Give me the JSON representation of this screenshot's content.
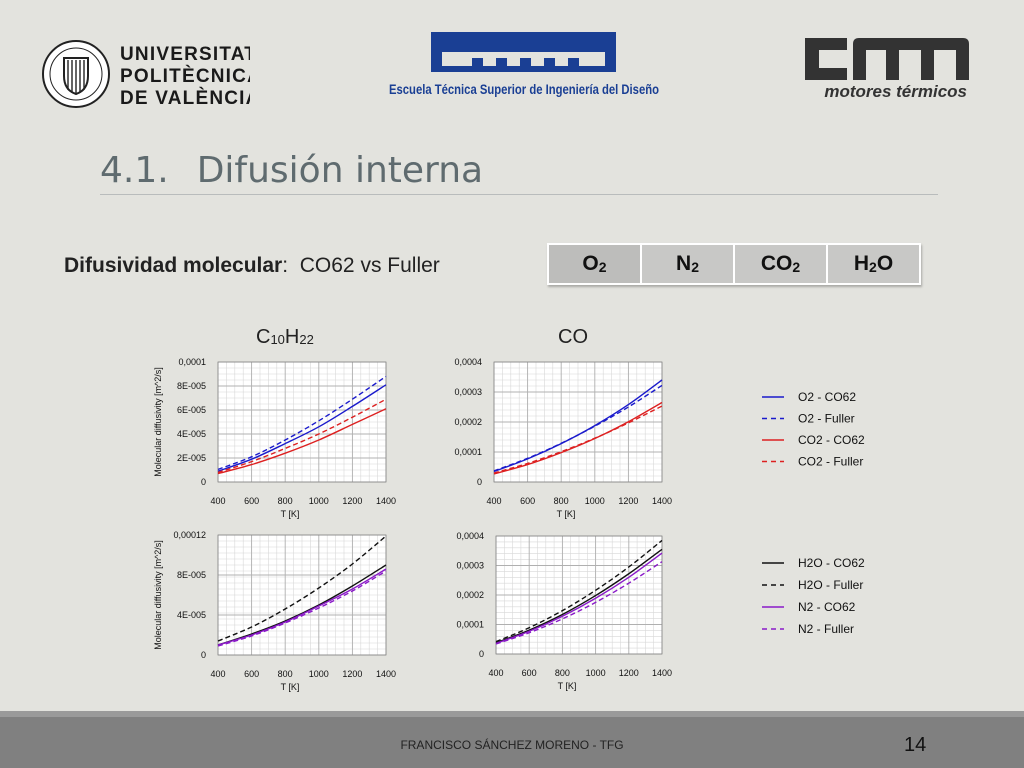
{
  "header": {
    "upv_logo_text": [
      "UNIVERSITAT",
      "POLITÈCNICA",
      "DE VALÈNCIA"
    ],
    "etsid_text": "Escuela Técnica Superior de Ingeniería del Diseño",
    "cmt_text": "motores térmicos"
  },
  "title": {
    "number": "4.1.",
    "text": "Difusión interna"
  },
  "subtitle": {
    "bold": "Difusividad molecular",
    "rest": "CO62 vs Fuller"
  },
  "species_table": [
    {
      "base": "O",
      "sub": "2"
    },
    {
      "base": "N",
      "sub": "2"
    },
    {
      "base": "CO",
      "sub": "2"
    },
    {
      "base": "H",
      "sub": "2",
      "tail": "O"
    }
  ],
  "column_heads": {
    "left": {
      "a": "C",
      "a_sub": "10",
      "b": "H",
      "b_sub": "22"
    },
    "right": "CO"
  },
  "legends": {
    "top": [
      {
        "label": "O2 - CO62",
        "color": "#1a1acc",
        "dash": false
      },
      {
        "label": "O2 - Fuller",
        "color": "#1a1acc",
        "dash": true
      },
      {
        "label": "CO2 - CO62",
        "color": "#dd2020",
        "dash": false
      },
      {
        "label": "CO2 - Fuller",
        "color": "#dd2020",
        "dash": true
      }
    ],
    "bottom": [
      {
        "label": "H2O - CO62",
        "color": "#111111",
        "dash": false
      },
      {
        "label": "H2O - Fuller",
        "color": "#111111",
        "dash": true
      },
      {
        "label": "N2 - CO62",
        "color": "#8a1ac8",
        "dash": false
      },
      {
        "label": "N2 - Fuller",
        "color": "#8a1ac8",
        "dash": true
      }
    ]
  },
  "chart_data": [
    {
      "type": "line",
      "xlabel": "T [K]",
      "ylabel": "Molecular diffusivity [m^2/s]",
      "xlim": [
        400,
        1400
      ],
      "ylim": [
        0,
        0.0001
      ],
      "xticks": [
        "400",
        "600",
        "800",
        "1000",
        "1200",
        "1400"
      ],
      "yticks": [
        "0",
        "2E-005",
        "4E-005",
        "6E-005",
        "8E-005",
        "0,0001"
      ],
      "x": [
        400,
        600,
        800,
        1000,
        1200,
        1400
      ],
      "series": [
        {
          "name": "O2 - CO62",
          "color": "#1a1acc",
          "dash": false,
          "values": [
            9e-06,
            1.9e-05,
            3.2e-05,
            4.6e-05,
            6.3e-05,
            8.1e-05
          ]
        },
        {
          "name": "O2 - Fuller",
          "color": "#1a1acc",
          "dash": true,
          "values": [
            1.05e-05,
            2.1e-05,
            3.5e-05,
            5.1e-05,
            6.9e-05,
            8.8e-05
          ]
        },
        {
          "name": "CO2 - CO62",
          "color": "#dd2020",
          "dash": false,
          "values": [
            7e-06,
            1.45e-05,
            2.4e-05,
            3.5e-05,
            4.8e-05,
            6.1e-05
          ]
        },
        {
          "name": "CO2 - Fuller",
          "color": "#dd2020",
          "dash": true,
          "values": [
            8e-06,
            1.7e-05,
            2.8e-05,
            4e-05,
            5.4e-05,
            6.9e-05
          ]
        }
      ]
    },
    {
      "type": "line",
      "xlabel": "T [K]",
      "ylabel": "",
      "xlim": [
        400,
        1400
      ],
      "ylim": [
        0,
        0.0004
      ],
      "xticks": [
        "400",
        "600",
        "800",
        "1000",
        "1200",
        "1400"
      ],
      "yticks": [
        "0",
        "0,0001",
        "0,0002",
        "0,0003",
        "0,0004"
      ],
      "x": [
        400,
        600,
        800,
        1000,
        1200,
        1400
      ],
      "series": [
        {
          "name": "O2 - CO62",
          "color": "#1a1acc",
          "dash": false,
          "values": [
            3.5e-05,
            7.7e-05,
            0.000128,
            0.000188,
            0.000258,
            0.00034
          ]
        },
        {
          "name": "O2 - Fuller",
          "color": "#1a1acc",
          "dash": true,
          "values": [
            3.7e-05,
            7.9e-05,
            0.000129,
            0.000186,
            0.00025,
            0.000322
          ]
        },
        {
          "name": "CO2 - CO62",
          "color": "#dd2020",
          "dash": false,
          "values": [
            2.7e-05,
            5.8e-05,
            9.8e-05,
            0.000145,
            0.000201,
            0.000265
          ]
        },
        {
          "name": "CO2 - Fuller",
          "color": "#dd2020",
          "dash": true,
          "values": [
            3e-05,
            6.2e-05,
            0.000101,
            0.000146,
            0.000197,
            0.000253
          ]
        }
      ]
    },
    {
      "type": "line",
      "xlabel": "T [K]",
      "ylabel": "Molecular diffusivity [m^2/s]",
      "xlim": [
        400,
        1400
      ],
      "ylim": [
        0,
        0.00012
      ],
      "xticks": [
        "400",
        "600",
        "800",
        "1000",
        "1200",
        "1400"
      ],
      "yticks": [
        "0",
        "4E-005",
        "8E-005",
        "0,00012"
      ],
      "x": [
        400,
        600,
        800,
        1000,
        1200,
        1400
      ],
      "series": [
        {
          "name": "H2O - CO62",
          "color": "#111111",
          "dash": false,
          "values": [
            1e-05,
            2.1e-05,
            3.4e-05,
            5e-05,
            6.9e-05,
            9e-05
          ]
        },
        {
          "name": "H2O - Fuller",
          "color": "#111111",
          "dash": true,
          "values": [
            1.4e-05,
            2.8e-05,
            4.6e-05,
            6.7e-05,
            9.1e-05,
            0.000119
          ]
        },
        {
          "name": "N2 - CO62",
          "color": "#8a1ac8",
          "dash": false,
          "values": [
            1e-05,
            2e-05,
            3.3e-05,
            4.9e-05,
            6.6e-05,
            8.6e-05
          ]
        },
        {
          "name": "N2 - Fuller",
          "color": "#8a1ac8",
          "dash": true,
          "values": [
            9e-06,
            1.9e-05,
            3.2e-05,
            4.7e-05,
            6.4e-05,
            8.4e-05
          ]
        }
      ]
    },
    {
      "type": "line",
      "xlabel": "T [K]",
      "ylabel": "",
      "xlim": [
        400,
        1400
      ],
      "ylim": [
        0,
        0.0004
      ],
      "xticks": [
        "400",
        "600",
        "800",
        "1000",
        "1200",
        "1400"
      ],
      "yticks": [
        "0",
        "0,0001",
        "0,0002",
        "0,0003",
        "0,0004"
      ],
      "x": [
        400,
        600,
        800,
        1000,
        1200,
        1400
      ],
      "series": [
        {
          "name": "H2O - CO62",
          "color": "#111111",
          "dash": false,
          "values": [
            3.8e-05,
            8.1e-05,
            0.000134,
            0.000198,
            0.000272,
            0.000355
          ]
        },
        {
          "name": "H2O - Fuller",
          "color": "#111111",
          "dash": true,
          "values": [
            4.2e-05,
            8.9e-05,
            0.000147,
            0.000216,
            0.000295,
            0.000385
          ]
        },
        {
          "name": "N2 - CO62",
          "color": "#8a1ac8",
          "dash": false,
          "values": [
            3.6e-05,
            7.7e-05,
            0.000128,
            0.000189,
            0.00026,
            0.000342
          ]
        },
        {
          "name": "N2 - Fuller",
          "color": "#8a1ac8",
          "dash": true,
          "values": [
            3.4e-05,
            7.2e-05,
            0.000119,
            0.000175,
            0.00024,
            0.000313
          ]
        }
      ]
    }
  ],
  "footer": {
    "text": "FRANCISCO SÁNCHEZ MORENO - TFG",
    "page": "14"
  }
}
